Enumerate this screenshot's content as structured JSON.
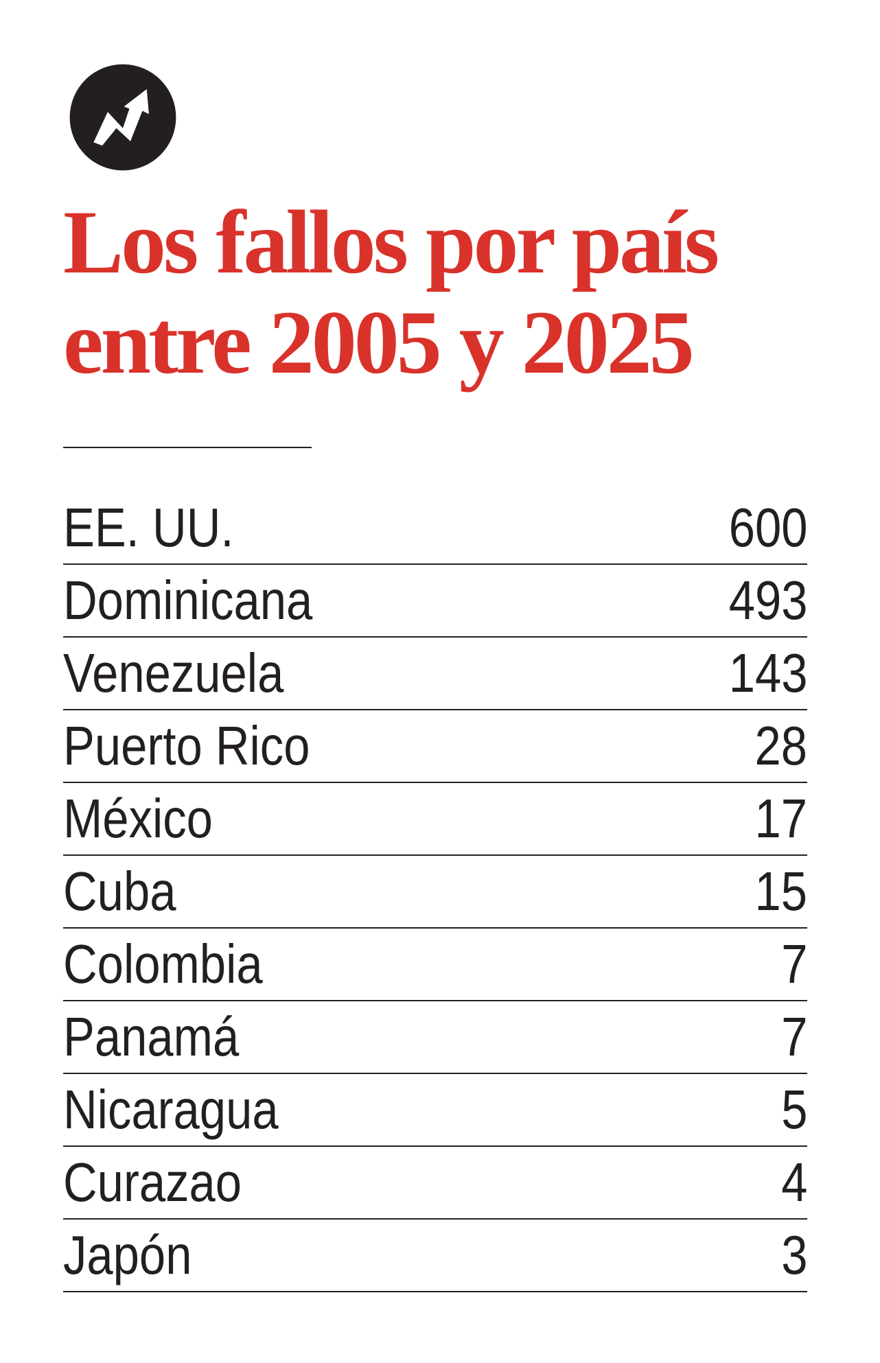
{
  "logo": {
    "icon": "trend-arrow-icon",
    "color": "#231f20"
  },
  "title": "Los fallos por país entre 2005 y 2025",
  "colors": {
    "title": "#d9322b",
    "text": "#231f20"
  },
  "rows": [
    {
      "country": "EE. UU.",
      "value": "600"
    },
    {
      "country": "Dominicana",
      "value": "493"
    },
    {
      "country": "Venezuela",
      "value": "143"
    },
    {
      "country": "Puerto Rico",
      "value": "28"
    },
    {
      "country": "México",
      "value": "17"
    },
    {
      "country": "Cuba",
      "value": "15"
    },
    {
      "country": "Colombia",
      "value": "7"
    },
    {
      "country": "Panamá",
      "value": "7"
    },
    {
      "country": "Nicaragua",
      "value": "5"
    },
    {
      "country": "Curazao",
      "value": "4"
    },
    {
      "country": "Japón",
      "value": "3"
    }
  ]
}
